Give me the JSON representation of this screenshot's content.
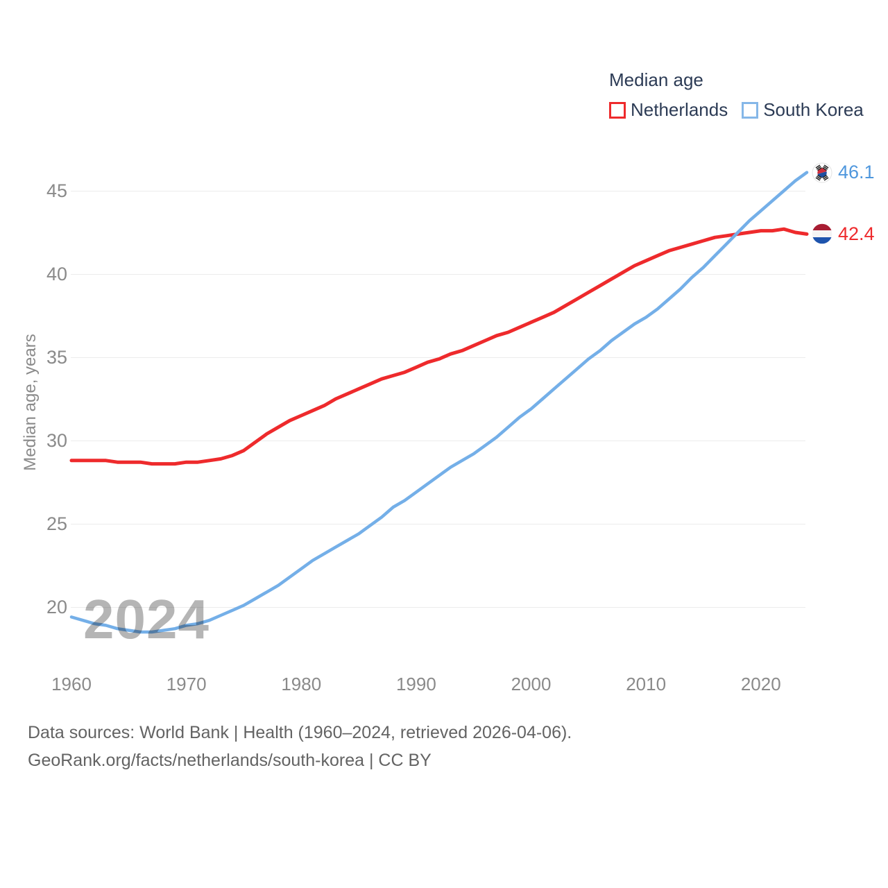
{
  "legend": {
    "title": "Median age",
    "items": [
      {
        "label": "Netherlands",
        "color": "#ee2a2c"
      },
      {
        "label": "South Korea",
        "color": "#85b7e8"
      }
    ]
  },
  "y_axis": {
    "title": "Median age, years",
    "ticks": [
      20,
      25,
      30,
      35,
      40,
      45
    ]
  },
  "x_axis": {
    "ticks": [
      1960,
      1970,
      1980,
      1990,
      2000,
      2010,
      2020
    ]
  },
  "watermark": "2024",
  "end_labels": [
    {
      "series": "South Korea",
      "value": "46.1",
      "text_color": "#4f97dd",
      "flag": "south-korea"
    },
    {
      "series": "Netherlands",
      "value": "42.4",
      "text_color": "#ee2a2c",
      "flag": "netherlands"
    }
  ],
  "footer": {
    "line1": "Data sources: World Bank | Health (1960–2024, retrieved 2026-04-06).",
    "line2": "GeoRank.org/facts/netherlands/south-korea | CC BY"
  },
  "chart_data": {
    "type": "line",
    "title": "Median age",
    "xlabel": "",
    "ylabel": "Median age, years",
    "x_range": [
      1960,
      2024
    ],
    "ylim": [
      17.5,
      47.5
    ],
    "grid": "horizontal-only",
    "legend_position": "top-right",
    "x": [
      1960,
      1961,
      1962,
      1963,
      1964,
      1965,
      1966,
      1967,
      1968,
      1969,
      1970,
      1971,
      1972,
      1973,
      1974,
      1975,
      1976,
      1977,
      1978,
      1979,
      1980,
      1981,
      1982,
      1983,
      1984,
      1985,
      1986,
      1987,
      1988,
      1989,
      1990,
      1991,
      1992,
      1993,
      1994,
      1995,
      1996,
      1997,
      1998,
      1999,
      2000,
      2001,
      2002,
      2003,
      2004,
      2005,
      2006,
      2007,
      2008,
      2009,
      2010,
      2011,
      2012,
      2013,
      2014,
      2015,
      2016,
      2017,
      2018,
      2019,
      2020,
      2021,
      2022,
      2023,
      2024
    ],
    "series": [
      {
        "name": "Netherlands",
        "color": "#ee2a2c",
        "end_value": 42.4,
        "values": [
          28.8,
          28.8,
          28.8,
          28.8,
          28.7,
          28.7,
          28.7,
          28.6,
          28.6,
          28.6,
          28.7,
          28.7,
          28.8,
          28.9,
          29.1,
          29.4,
          29.9,
          30.4,
          30.8,
          31.2,
          31.5,
          31.8,
          32.1,
          32.5,
          32.8,
          33.1,
          33.4,
          33.7,
          33.9,
          34.1,
          34.4,
          34.7,
          34.9,
          35.2,
          35.4,
          35.7,
          36.0,
          36.3,
          36.5,
          36.8,
          37.1,
          37.4,
          37.7,
          38.1,
          38.5,
          38.9,
          39.3,
          39.7,
          40.1,
          40.5,
          40.8,
          41.1,
          41.4,
          41.6,
          41.8,
          42.0,
          42.2,
          42.3,
          42.4,
          42.5,
          42.6,
          42.6,
          42.7,
          42.5,
          42.4
        ]
      },
      {
        "name": "South Korea",
        "color": "#74afe8",
        "end_value": 46.1,
        "values": [
          19.4,
          19.2,
          19.0,
          18.9,
          18.7,
          18.6,
          18.5,
          18.5,
          18.6,
          18.7,
          18.9,
          19.0,
          19.2,
          19.5,
          19.8,
          20.1,
          20.5,
          20.9,
          21.3,
          21.8,
          22.3,
          22.8,
          23.2,
          23.6,
          24.0,
          24.4,
          24.9,
          25.4,
          26.0,
          26.4,
          26.9,
          27.4,
          27.9,
          28.4,
          28.8,
          29.2,
          29.7,
          30.2,
          30.8,
          31.4,
          31.9,
          32.5,
          33.1,
          33.7,
          34.3,
          34.9,
          35.4,
          36.0,
          36.5,
          37.0,
          37.4,
          37.9,
          38.5,
          39.1,
          39.8,
          40.4,
          41.1,
          41.8,
          42.5,
          43.2,
          43.8,
          44.4,
          45.0,
          45.6,
          46.1
        ]
      }
    ]
  }
}
